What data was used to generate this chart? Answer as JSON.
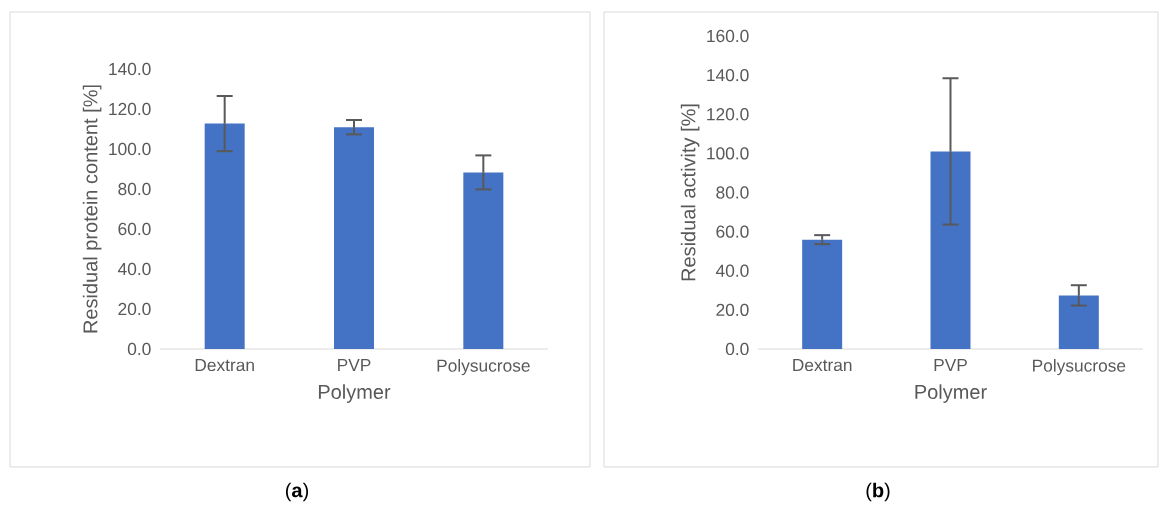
{
  "chart_data": [
    {
      "type": "bar",
      "xlabel": "Polymer",
      "ylabel": "Residual protein content [%]",
      "categories": [
        "Dextran",
        "PVP",
        "Polysucrose"
      ],
      "values": [
        112.7,
        110.9,
        88.3
      ],
      "errors": [
        13.8,
        3.6,
        8.5
      ],
      "color": "#4472c4",
      "ylim": [
        0,
        140
      ],
      "yticks": [
        {
          "value": 0,
          "label": "0.0"
        },
        {
          "value": 20,
          "label": "20.0"
        },
        {
          "value": 40,
          "label": "40.0"
        },
        {
          "value": 60,
          "label": "60.0"
        },
        {
          "value": 80,
          "label": "80.0"
        },
        {
          "value": 100,
          "label": "100.0"
        },
        {
          "value": 120,
          "label": "120.0"
        },
        {
          "value": 140,
          "label": "140.0"
        }
      ],
      "grid": false,
      "annotations": [
        "(**a**)"
      ]
    },
    {
      "type": "bar",
      "xlabel": "Polymer",
      "ylabel": "Residual activity [%]",
      "categories": [
        "Dextran",
        "PVP",
        "Polysucrose"
      ],
      "values": [
        55.9,
        101.0,
        27.4
      ],
      "errors": [
        2.3,
        37.4,
        5.2
      ],
      "color": "#4472c4",
      "ylim": [
        0,
        160
      ],
      "yticks": [
        {
          "value": 0,
          "label": "0.0"
        },
        {
          "value": 20,
          "label": "20.0"
        },
        {
          "value": 40,
          "label": "40.0"
        },
        {
          "value": 60,
          "label": "60.0"
        },
        {
          "value": 80,
          "label": "80.0"
        },
        {
          "value": 100,
          "label": "100.0"
        },
        {
          "value": 120,
          "label": "120.0"
        },
        {
          "value": 140,
          "label": "140.0"
        },
        {
          "value": 160,
          "label": "160.0"
        }
      ],
      "grid": false,
      "annotations": [
        "(**b**)"
      ]
    }
  ]
}
